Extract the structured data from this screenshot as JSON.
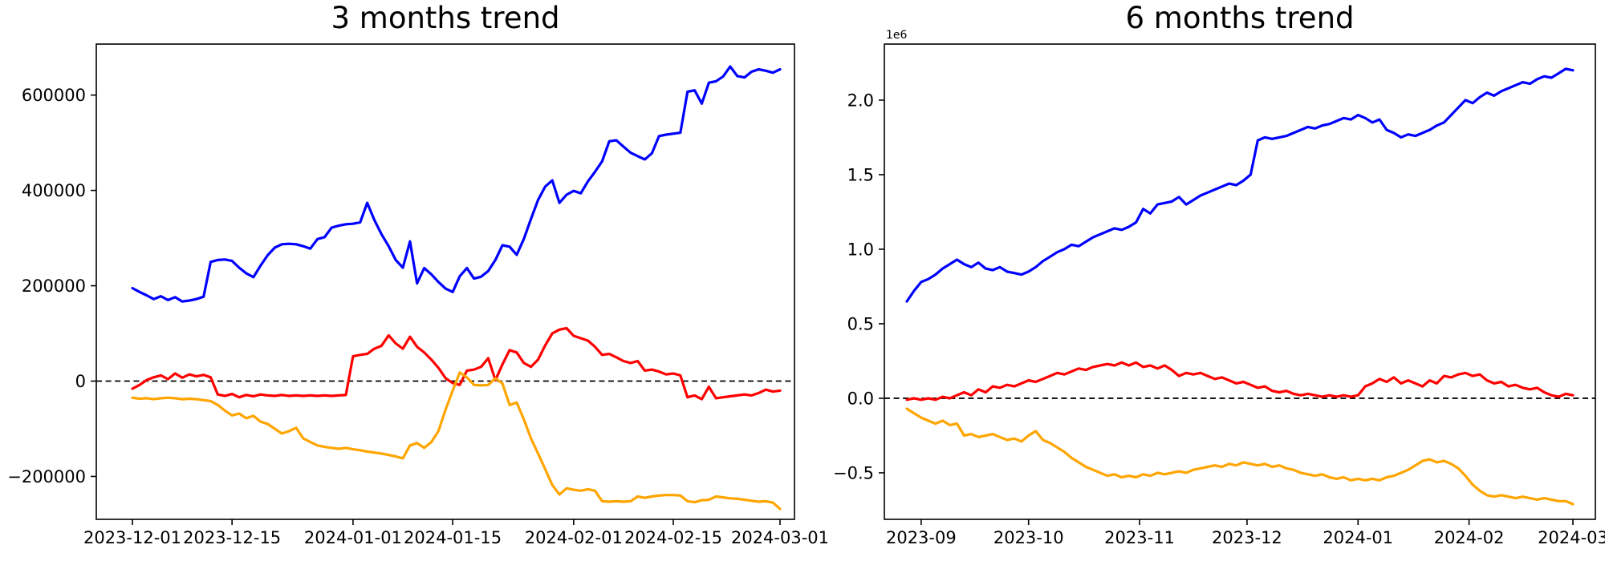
{
  "chart_data": [
    {
      "id": "left",
      "type": "line",
      "title": "3 months trend",
      "x_start": "2023-12-01",
      "x_interval_days": 1,
      "x_ticks": {
        "labels": [
          "2023-12-01",
          "2023-12-15",
          "2024-01-01",
          "2024-01-15",
          "2024-02-01",
          "2024-02-15",
          "2024-03-01"
        ],
        "day_offsets": [
          0,
          14,
          31,
          45,
          62,
          76,
          91
        ]
      },
      "y_ticks": {
        "labels": [
          "−200000",
          "0",
          "200000",
          "400000",
          "600000"
        ],
        "values": [
          -200000,
          0,
          200000,
          400000,
          600000
        ],
        "offset_label": ""
      },
      "ylim": [
        -290000,
        707000
      ],
      "grid": false,
      "legend": "none",
      "zero_line": {
        "style": "dashed",
        "color": "#000000",
        "y": 0
      },
      "series": [
        {
          "name": "blue",
          "color": "#0000ff",
          "values": [
            195000,
            187000,
            180000,
            172000,
            178000,
            170000,
            176000,
            167000,
            169000,
            172000,
            177000,
            250000,
            254000,
            255000,
            252000,
            238000,
            226000,
            218000,
            242000,
            264000,
            280000,
            287000,
            288000,
            287000,
            283000,
            278000,
            298000,
            302000,
            322000,
            326000,
            329000,
            330000,
            333000,
            374000,
            338000,
            308000,
            283000,
            254000,
            238000,
            293000,
            205000,
            237000,
            224000,
            208000,
            194000,
            187000,
            220000,
            237000,
            215000,
            219000,
            231000,
            254000,
            285000,
            282000,
            265000,
            298000,
            340000,
            380000,
            408000,
            421000,
            374000,
            391000,
            399000,
            394000,
            419000,
            439000,
            461000,
            503000,
            505000,
            492000,
            479000,
            472000,
            465000,
            478000,
            514000,
            517000,
            519000,
            521000,
            607000,
            610000,
            582000,
            626000,
            629000,
            639000,
            660000,
            640000,
            637000,
            649000,
            654000,
            651000,
            647000,
            654000
          ]
        },
        {
          "name": "red",
          "color": "#ff0000",
          "values": [
            -16000,
            -8000,
            2000,
            8000,
            12000,
            4000,
            16000,
            7000,
            14000,
            10000,
            13000,
            8000,
            -28000,
            -31000,
            -27000,
            -34000,
            -29000,
            -32000,
            -28000,
            -30000,
            -31000,
            -29000,
            -31000,
            -30000,
            -31000,
            -30000,
            -31000,
            -30000,
            -31000,
            -30000,
            -29000,
            52000,
            55000,
            57000,
            68000,
            74000,
            96000,
            79000,
            68000,
            93000,
            72000,
            60000,
            45000,
            28000,
            6000,
            -4000,
            -8000,
            22000,
            24000,
            30000,
            48000,
            2000,
            35000,
            65000,
            60000,
            38000,
            30000,
            45000,
            75000,
            100000,
            108000,
            111000,
            95000,
            90000,
            85000,
            72000,
            55000,
            57000,
            50000,
            42000,
            38000,
            42000,
            22000,
            24000,
            20000,
            14000,
            16000,
            12000,
            -34000,
            -30000,
            -38000,
            -12000,
            -36000,
            -34000,
            -32000,
            -30000,
            -28000,
            -30000,
            -25000,
            -18000,
            -22000,
            -20000
          ]
        },
        {
          "name": "orange",
          "color": "#ffa500",
          "values": [
            -35000,
            -37000,
            -36000,
            -38000,
            -36000,
            -35000,
            -36000,
            -38000,
            -37000,
            -38000,
            -40000,
            -42000,
            -50000,
            -62000,
            -72000,
            -68000,
            -78000,
            -73000,
            -85000,
            -90000,
            -100000,
            -110000,
            -105000,
            -98000,
            -120000,
            -128000,
            -135000,
            -138000,
            -140000,
            -142000,
            -140000,
            -143000,
            -145000,
            -148000,
            -150000,
            -152000,
            -155000,
            -158000,
            -162000,
            -135000,
            -130000,
            -140000,
            -128000,
            -105000,
            -60000,
            -20000,
            18000,
            8000,
            -8000,
            -9000,
            -8000,
            6000,
            -5000,
            -50000,
            -45000,
            -80000,
            -120000,
            -152000,
            -185000,
            -218000,
            -238000,
            -225000,
            -228000,
            -230000,
            -227000,
            -230000,
            -252000,
            -253000,
            -252000,
            -253000,
            -252000,
            -242000,
            -245000,
            -242000,
            -240000,
            -239000,
            -239000,
            -240000,
            -252000,
            -254000,
            -250000,
            -249000,
            -242000,
            -244000,
            -246000,
            -247000,
            -249000,
            -251000,
            -253000,
            -252000,
            -255000,
            -268000
          ]
        }
      ]
    },
    {
      "id": "right",
      "type": "line",
      "title": "6 months trend",
      "x_start": "2023-08-28",
      "x_interval_days": 2,
      "x_ticks": {
        "labels": [
          "2023-09",
          "2023-10",
          "2023-11",
          "2023-12",
          "2024-01",
          "2024-02",
          "2024-03"
        ],
        "day_offsets": [
          4,
          34,
          65,
          95,
          126,
          157,
          186
        ]
      },
      "y_ticks": {
        "labels": [
          "−0.5",
          "0.0",
          "0.5",
          "1.0",
          "1.5",
          "2.0"
        ],
        "values": [
          -500000,
          0,
          500000,
          1000000,
          1500000,
          2000000
        ],
        "offset_label": "1e6"
      },
      "ylim": [
        -812000,
        2376000
      ],
      "grid": false,
      "legend": "none",
      "zero_line": {
        "style": "dashed",
        "color": "#000000",
        "y": 0
      },
      "series": [
        {
          "name": "blue",
          "color": "#0000ff",
          "values": [
            650000,
            720000,
            780000,
            800000,
            830000,
            870000,
            900000,
            930000,
            900000,
            880000,
            910000,
            870000,
            860000,
            880000,
            850000,
            840000,
            830000,
            850000,
            880000,
            920000,
            950000,
            980000,
            1000000,
            1030000,
            1020000,
            1050000,
            1080000,
            1100000,
            1120000,
            1140000,
            1130000,
            1150000,
            1180000,
            1270000,
            1240000,
            1300000,
            1310000,
            1320000,
            1350000,
            1300000,
            1330000,
            1360000,
            1380000,
            1400000,
            1420000,
            1440000,
            1430000,
            1460000,
            1500000,
            1730000,
            1750000,
            1740000,
            1750000,
            1760000,
            1780000,
            1800000,
            1820000,
            1810000,
            1830000,
            1840000,
            1860000,
            1880000,
            1870000,
            1900000,
            1880000,
            1850000,
            1870000,
            1800000,
            1780000,
            1750000,
            1770000,
            1760000,
            1780000,
            1800000,
            1830000,
            1850000,
            1900000,
            1950000,
            2000000,
            1980000,
            2020000,
            2050000,
            2030000,
            2060000,
            2080000,
            2100000,
            2120000,
            2110000,
            2140000,
            2160000,
            2150000,
            2180000,
            2210000,
            2200000
          ]
        },
        {
          "name": "red",
          "color": "#ff0000",
          "values": [
            -10000,
            0,
            -10000,
            0,
            -10000,
            10000,
            0,
            20000,
            40000,
            20000,
            60000,
            40000,
            80000,
            70000,
            90000,
            80000,
            100000,
            120000,
            110000,
            130000,
            150000,
            170000,
            160000,
            180000,
            200000,
            190000,
            210000,
            220000,
            230000,
            220000,
            240000,
            220000,
            240000,
            210000,
            220000,
            200000,
            220000,
            190000,
            150000,
            170000,
            160000,
            170000,
            150000,
            130000,
            140000,
            120000,
            100000,
            110000,
            90000,
            70000,
            80000,
            50000,
            40000,
            50000,
            30000,
            20000,
            30000,
            20000,
            10000,
            20000,
            10000,
            20000,
            10000,
            20000,
            80000,
            100000,
            130000,
            110000,
            140000,
            100000,
            120000,
            100000,
            80000,
            120000,
            100000,
            150000,
            140000,
            160000,
            170000,
            150000,
            160000,
            120000,
            100000,
            110000,
            80000,
            90000,
            70000,
            60000,
            70000,
            40000,
            20000,
            10000,
            30000,
            20000
          ]
        },
        {
          "name": "orange",
          "color": "#ffa500",
          "values": [
            -70000,
            -100000,
            -130000,
            -150000,
            -170000,
            -150000,
            -180000,
            -170000,
            -250000,
            -240000,
            -260000,
            -250000,
            -240000,
            -260000,
            -280000,
            -270000,
            -290000,
            -250000,
            -220000,
            -280000,
            -300000,
            -330000,
            -360000,
            -400000,
            -430000,
            -460000,
            -480000,
            -500000,
            -520000,
            -510000,
            -530000,
            -520000,
            -530000,
            -510000,
            -520000,
            -500000,
            -510000,
            -500000,
            -490000,
            -500000,
            -480000,
            -470000,
            -460000,
            -450000,
            -460000,
            -440000,
            -450000,
            -430000,
            -440000,
            -450000,
            -440000,
            -460000,
            -450000,
            -470000,
            -480000,
            -500000,
            -510000,
            -520000,
            -510000,
            -530000,
            -540000,
            -530000,
            -550000,
            -540000,
            -550000,
            -540000,
            -550000,
            -530000,
            -520000,
            -500000,
            -480000,
            -450000,
            -420000,
            -410000,
            -430000,
            -420000,
            -440000,
            -470000,
            -520000,
            -580000,
            -620000,
            -650000,
            -660000,
            -650000,
            -660000,
            -670000,
            -660000,
            -670000,
            -680000,
            -670000,
            -680000,
            -690000,
            -690000,
            -710000
          ]
        }
      ]
    }
  ]
}
